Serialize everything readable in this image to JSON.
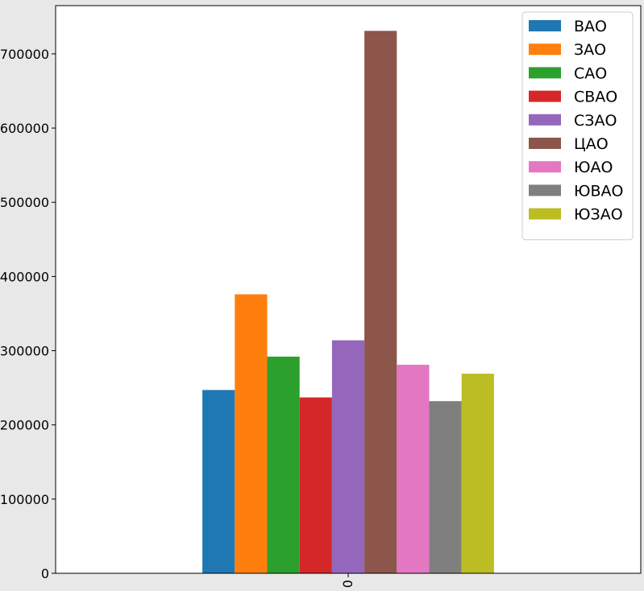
{
  "chart_data": {
    "type": "bar",
    "title": "",
    "xlabel": "",
    "ylabel": "",
    "categories": [
      "0"
    ],
    "ylim": [
      0,
      765000
    ],
    "yticks": [
      0,
      100000,
      200000,
      300000,
      400000,
      500000,
      600000,
      700000
    ],
    "grid": false,
    "legend_position": "top-right",
    "series": [
      {
        "name": "ВАО",
        "values": [
          247000
        ],
        "color": "#1f77b4"
      },
      {
        "name": "ЗАО",
        "values": [
          376000
        ],
        "color": "#ff7f0e"
      },
      {
        "name": "САО",
        "values": [
          292000
        ],
        "color": "#2ca02c"
      },
      {
        "name": "СВАО",
        "values": [
          237000
        ],
        "color": "#d62728"
      },
      {
        "name": "СЗАО",
        "values": [
          314000
        ],
        "color": "#9467bd"
      },
      {
        "name": "ЦАО",
        "values": [
          731000
        ],
        "color": "#8c564b"
      },
      {
        "name": "ЮАО",
        "values": [
          281000
        ],
        "color": "#e377c2"
      },
      {
        "name": "ЮВАО",
        "values": [
          232000
        ],
        "color": "#7f7f7f"
      },
      {
        "name": "ЮЗАО",
        "values": [
          269000
        ],
        "color": "#bcbd22"
      }
    ]
  }
}
